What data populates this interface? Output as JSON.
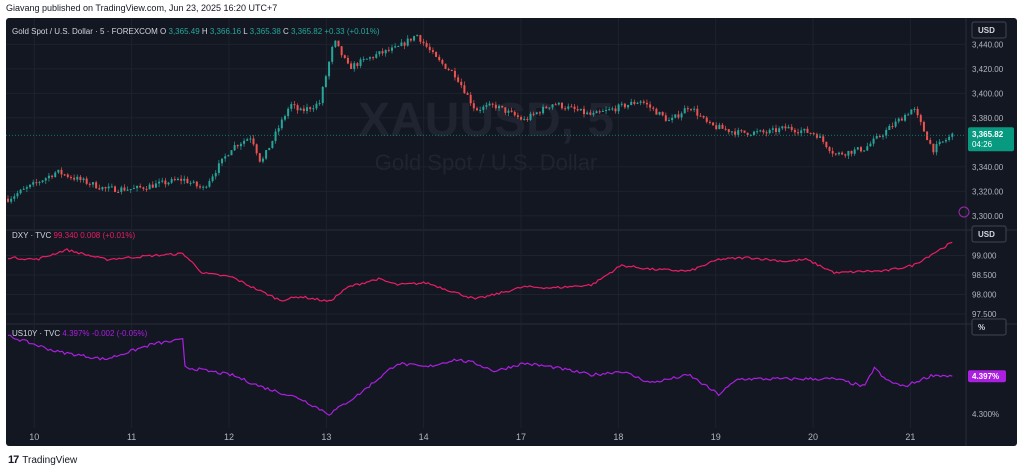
{
  "header": {
    "published": "Giavang published on TradingView.com, Jun 23, 2025 16:20 UTC+7"
  },
  "footer": {
    "logo_mark": "17",
    "logo_text": "TradingView"
  },
  "colors": {
    "background": "#131722",
    "grid": "#1e222d",
    "text": "#b2b5be",
    "gold_up": "#26a69a",
    "gold_down": "#ef5350",
    "dxy": "#e91e63",
    "us10y": "#ab1fe0",
    "last_price": "#089981"
  },
  "chart_data": [
    {
      "type": "candlestick",
      "pane": "price",
      "title": "Gold Spot / U.S. Dollar · 5 · FOREXCOM",
      "watermark_symbol": "XAUUSD, 5",
      "watermark_name": "Gold Spot / U.S. Dollar",
      "ohlc": {
        "o_label": "O",
        "o": "3,365.49",
        "h_label": "H",
        "h": "3,366.16",
        "l_label": "L",
        "l": "3,365.38",
        "c_label": "C",
        "c": "3,365.82",
        "change": "+0.33 (+0.01%)"
      },
      "currency": "USD",
      "last_price": "3,365.82",
      "countdown": "04:26",
      "y_ticks": [
        "3,440.00",
        "3,420.00",
        "3,400.00",
        "3,380.00",
        "3,340.00",
        "3,320.00",
        "3,300.00"
      ],
      "ylim": [
        3295,
        3455
      ],
      "x_ticks": [
        "10",
        "11",
        "12",
        "13",
        "14",
        "17",
        "18",
        "19",
        "20",
        "21"
      ],
      "x": [
        0,
        0.5,
        1,
        1.3,
        1.8,
        2.0,
        2.3,
        2.5,
        2.6,
        2.9,
        3.0,
        3.2,
        3.35,
        3.5,
        3.8,
        4.0,
        4.2,
        4.4,
        4.6,
        4.8,
        5.0,
        5.3,
        5.6,
        6.0,
        6.5,
        6.8,
        7.0,
        7.2,
        7.5,
        7.8,
        8.0,
        8.3,
        8.5,
        8.8,
        9.0,
        9.3,
        9.5,
        9.7
      ],
      "close": [
        3314,
        3336,
        3322,
        3322,
        3330,
        3322,
        3356,
        3365,
        3343,
        3391,
        3385,
        3392,
        3443,
        3421,
        3432,
        3437,
        3448,
        3428,
        3415,
        3387,
        3390,
        3378,
        3392,
        3382,
        3394,
        3377,
        3390,
        3374,
        3368,
        3368,
        3372,
        3367,
        3350,
        3355,
        3368,
        3388,
        3354,
        3366
      ]
    },
    {
      "type": "line",
      "pane": "dxy",
      "legend": {
        "symbol": "DXY · TVC",
        "value": "99.340",
        "change": "0.008 (+0.01%)"
      },
      "currency": "USD",
      "last_value": "99.340",
      "y_ticks": [
        "99.000",
        "98.500",
        "98.000",
        "97.500"
      ],
      "ylim": [
        97.45,
        99.45
      ],
      "x": [
        0,
        0.3,
        0.6,
        1.0,
        1.5,
        1.8,
        2.0,
        2.3,
        2.5,
        2.8,
        3.0,
        3.3,
        3.5,
        3.8,
        4.0,
        4.3,
        4.6,
        4.8,
        5.0,
        5.3,
        5.6,
        6.0,
        6.3,
        6.6,
        7.0,
        7.3,
        7.6,
        8.0,
        8.2,
        8.5,
        8.8,
        9.0,
        9.3,
        9.5,
        9.7
      ],
      "values": [
        98.95,
        98.9,
        99.15,
        98.9,
        99.0,
        99.05,
        98.55,
        98.45,
        98.2,
        97.85,
        97.95,
        97.82,
        98.2,
        98.4,
        98.25,
        98.3,
        98.05,
        97.88,
        98.0,
        98.2,
        98.17,
        98.25,
        98.75,
        98.65,
        98.6,
        98.9,
        98.95,
        98.85,
        98.9,
        98.55,
        98.6,
        98.6,
        98.75,
        99.05,
        99.34
      ]
    },
    {
      "type": "line",
      "pane": "us10y",
      "legend": {
        "symbol": "US10Y · TVC",
        "value": "4.397%",
        "change": "-0.002 (-0.05%)"
      },
      "currency": "%",
      "last_value": "4.397%",
      "y_ticks": [
        "4.300%"
      ],
      "ylim": [
        4.285,
        4.51
      ],
      "x": [
        0,
        0.5,
        1.0,
        1.5,
        1.8,
        1.82,
        2.3,
        2.6,
        3.0,
        3.3,
        3.6,
        4.0,
        4.3,
        4.6,
        4.8,
        5.0,
        5.3,
        5.6,
        6.0,
        6.3,
        6.6,
        7.0,
        7.3,
        7.5,
        7.8,
        8.2,
        8.5,
        8.8,
        8.9,
        9.0,
        9.2,
        9.5,
        9.7
      ],
      "values": [
        4.5,
        4.46,
        4.44,
        4.48,
        4.49,
        4.42,
        4.4,
        4.37,
        4.34,
        4.3,
        4.35,
        4.43,
        4.42,
        4.44,
        4.43,
        4.41,
        4.43,
        4.42,
        4.4,
        4.41,
        4.38,
        4.4,
        4.35,
        4.39,
        4.39,
        4.39,
        4.39,
        4.37,
        4.42,
        4.39,
        4.37,
        4.4,
        4.397
      ]
    }
  ]
}
